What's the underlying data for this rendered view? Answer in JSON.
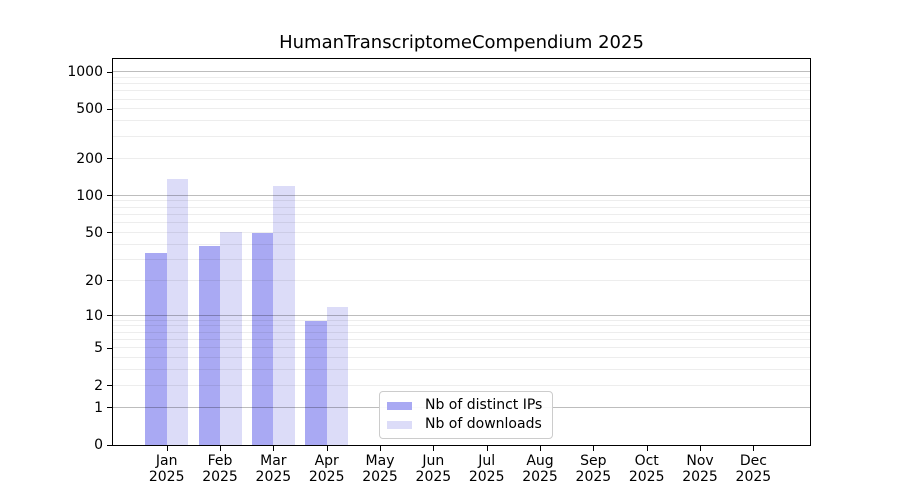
{
  "chart_data": {
    "type": "bar",
    "title": "HumanTranscriptomeCompendium 2025",
    "year": "2025",
    "categories": [
      "Jan",
      "Feb",
      "Mar",
      "Apr",
      "May",
      "Jun",
      "Jul",
      "Aug",
      "Sep",
      "Oct",
      "Nov",
      "Dec"
    ],
    "series": [
      {
        "name": "Nb of distinct IPs",
        "color": "#a9a9f3",
        "values": [
          34,
          39,
          50,
          9,
          0,
          0,
          0,
          0,
          0,
          0,
          0,
          0
        ]
      },
      {
        "name": "Nb of downloads",
        "color": "#dcdcf8",
        "values": [
          137,
          51,
          121,
          12,
          0,
          0,
          0,
          0,
          0,
          0,
          0,
          0
        ]
      }
    ],
    "y_axis": {
      "scale": "log1p",
      "tick_values": [
        1000,
        500,
        200,
        100,
        50,
        20,
        10,
        5,
        2,
        1,
        0
      ],
      "major_grid_values": [
        1,
        10,
        100,
        1000
      ],
      "axis_max": 1273
    },
    "x_axis": {
      "grid": false
    },
    "legend": {
      "position": "lower center"
    },
    "colors": {
      "spine": "#000000",
      "major_grid": "#bdbdbd",
      "minor_grid": "#ededed"
    }
  }
}
